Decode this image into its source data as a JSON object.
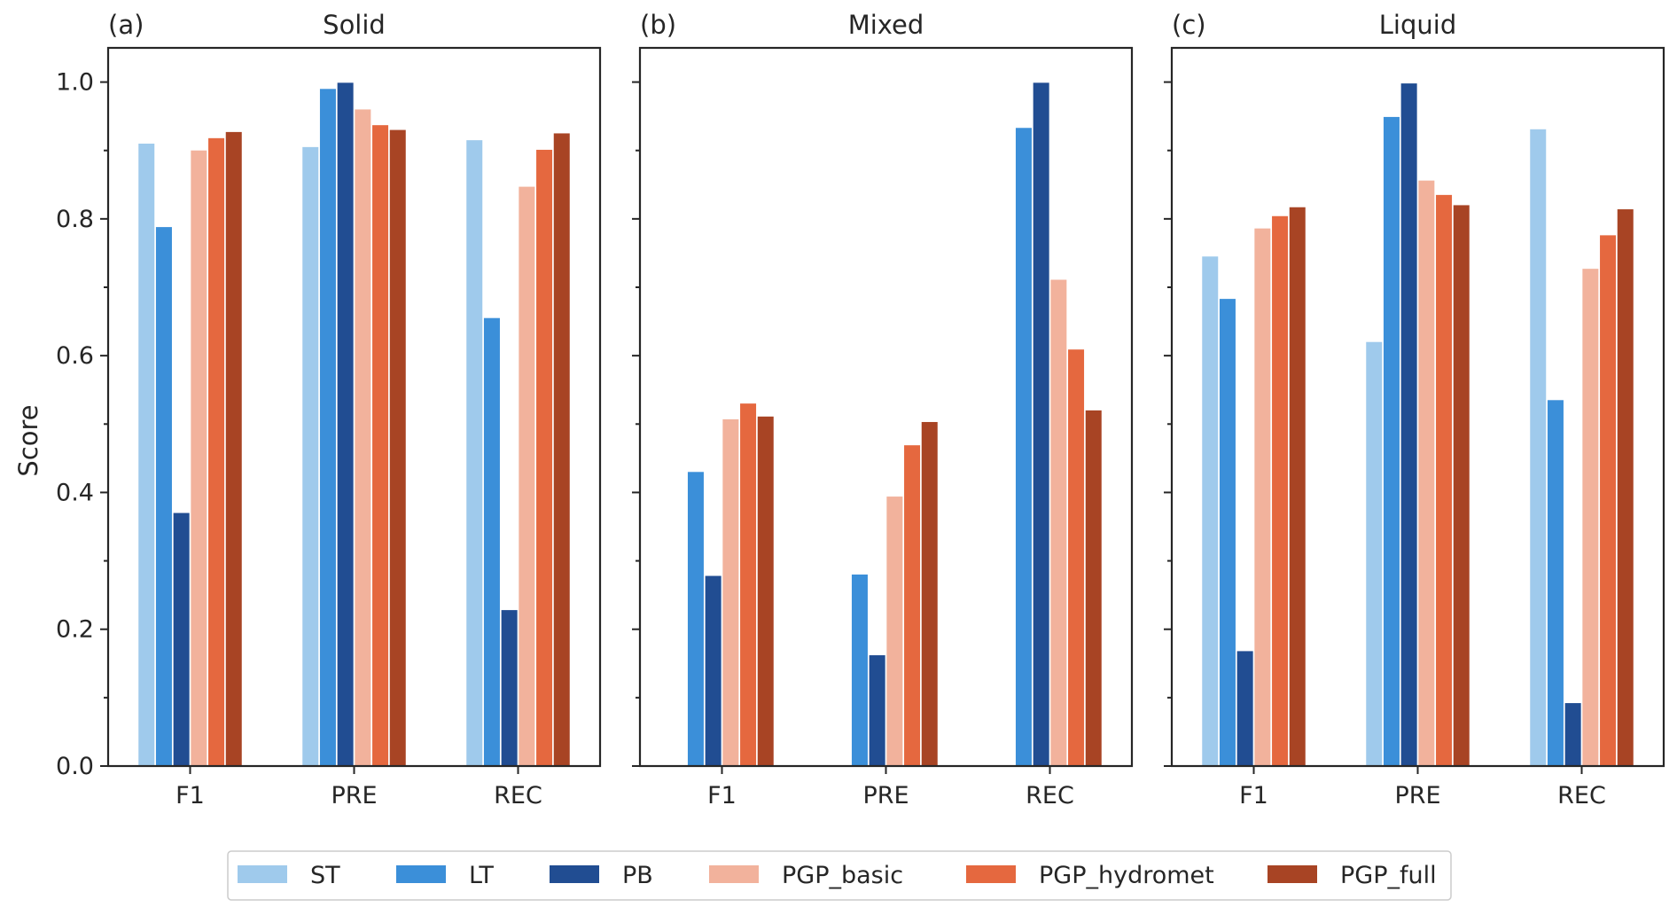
{
  "chart_data": {
    "type": "bar",
    "ylabel": "Score",
    "ylim": [
      0,
      1.05
    ],
    "yticks": [
      0.0,
      0.2,
      0.4,
      0.6,
      0.8,
      1.0
    ],
    "ytick_labels": [
      "0.0",
      "0.2",
      "0.4",
      "0.6",
      "0.8",
      "1.0"
    ],
    "grid": false,
    "legend_position": "bottom",
    "categories": [
      "F1",
      "PRE",
      "REC"
    ],
    "series_styles": [
      {
        "name": "ST",
        "color": "#9fcaec"
      },
      {
        "name": "LT",
        "color": "#3b8fd9"
      },
      {
        "name": "PB",
        "color": "#214d92"
      },
      {
        "name": "PGP_basic",
        "color": "#f2b29c"
      },
      {
        "name": "PGP_hydromet",
        "color": "#e5683f"
      },
      {
        "name": "PGP_full",
        "color": "#a84424"
      }
    ],
    "panels": [
      {
        "label": "(a)",
        "title": "Solid",
        "series": [
          {
            "name": "ST",
            "values": [
              0.91,
              0.905,
              0.915
            ]
          },
          {
            "name": "LT",
            "values": [
              0.788,
              0.99,
              0.655
            ]
          },
          {
            "name": "PB",
            "values": [
              0.37,
              0.999,
              0.228
            ]
          },
          {
            "name": "PGP_basic",
            "values": [
              0.9,
              0.96,
              0.847
            ]
          },
          {
            "name": "PGP_hydromet",
            "values": [
              0.918,
              0.937,
              0.901
            ]
          },
          {
            "name": "PGP_full",
            "values": [
              0.927,
              0.93,
              0.925
            ]
          }
        ]
      },
      {
        "label": "(b)",
        "title": "Mixed",
        "series": [
          {
            "name": "ST",
            "values": [
              0.0,
              0.0,
              0.0
            ]
          },
          {
            "name": "LT",
            "values": [
              0.43,
              0.28,
              0.933
            ]
          },
          {
            "name": "PB",
            "values": [
              0.278,
              0.162,
              0.999
            ]
          },
          {
            "name": "PGP_basic",
            "values": [
              0.507,
              0.394,
              0.711
            ]
          },
          {
            "name": "PGP_hydromet",
            "values": [
              0.53,
              0.469,
              0.609
            ]
          },
          {
            "name": "PGP_full",
            "values": [
              0.511,
              0.503,
              0.52
            ]
          }
        ]
      },
      {
        "label": "(c)",
        "title": "Liquid",
        "series": [
          {
            "name": "ST",
            "values": [
              0.745,
              0.62,
              0.931
            ]
          },
          {
            "name": "LT",
            "values": [
              0.683,
              0.949,
              0.535
            ]
          },
          {
            "name": "PB",
            "values": [
              0.168,
              0.998,
              0.092
            ]
          },
          {
            "name": "PGP_basic",
            "values": [
              0.786,
              0.856,
              0.727
            ]
          },
          {
            "name": "PGP_hydromet",
            "values": [
              0.804,
              0.835,
              0.776
            ]
          },
          {
            "name": "PGP_full",
            "values": [
              0.817,
              0.82,
              0.814
            ]
          }
        ]
      }
    ]
  }
}
